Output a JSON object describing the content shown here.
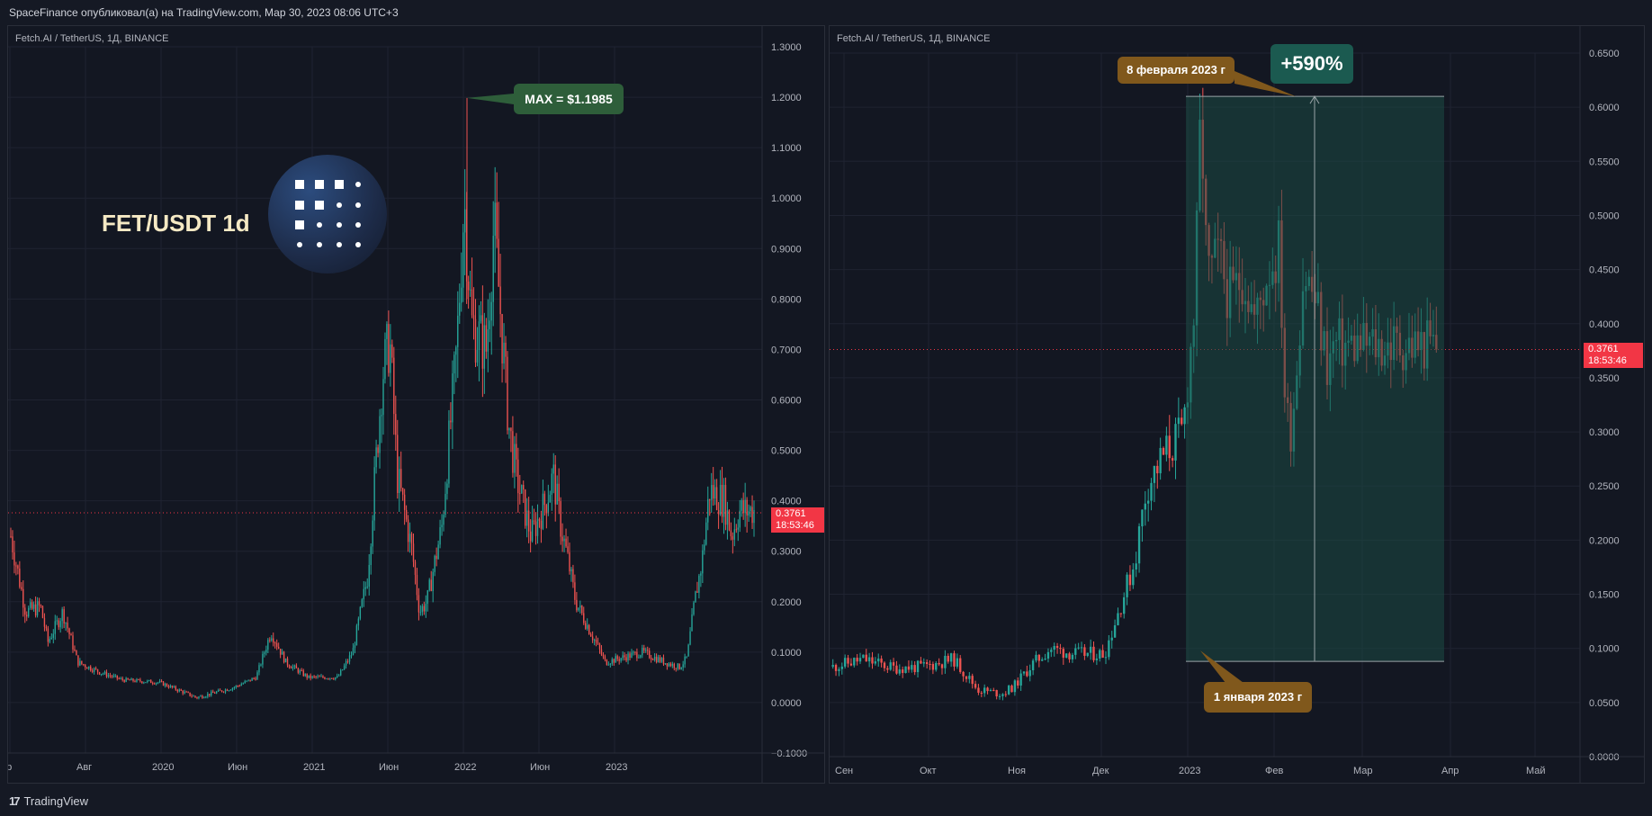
{
  "header": {
    "attribution": "SpaceFinance опубликовал(а) на TradingView.com, Мар 30, 2023 08:06 UTC+3"
  },
  "footer": {
    "brand_icon": "17",
    "brand": "TradingView"
  },
  "left_chart": {
    "legend": "Fetch.AI / TetherUS, 1Д, BINANCE",
    "title": "FET/USDT 1d",
    "logo": "fetch-ai-logo",
    "annotation": "MAX = $1.1985",
    "price_label": "0.3761",
    "countdown": "18:53:46",
    "y_ticks": [
      "1.3000",
      "1.2000",
      "1.1000",
      "1.0000",
      "0.9000",
      "0.8000",
      "0.7000",
      "0.6000",
      "0.5000",
      "0.4000",
      "0.3000",
      "0.2000",
      "0.1000",
      "0.0000",
      "−0.1000"
    ],
    "x_ticks": [
      "ар",
      "Авг",
      "2020",
      "Июн",
      "2021",
      "Июн",
      "2022",
      "Июн",
      "2023"
    ]
  },
  "right_chart": {
    "legend": "Fetch.AI / TetherUS, 1Д, BINANCE",
    "callout_top_date": "8 февраля 2023 г",
    "callout_gain": "+590%",
    "callout_bottom_date": "1 января 2023 г",
    "price_label": "0.3761",
    "countdown": "18:53:46",
    "y_ticks": [
      "0.6500",
      "0.6000",
      "0.5500",
      "0.5000",
      "0.4500",
      "0.4000",
      "0.3500",
      "0.3000",
      "0.2500",
      "0.2000",
      "0.1500",
      "0.1000",
      "0.0500",
      "0.0000"
    ],
    "x_ticks": [
      "Сен",
      "Окт",
      "Ноя",
      "Дек",
      "2023",
      "Фев",
      "Мар",
      "Апр",
      "Май"
    ]
  },
  "colors": {
    "up": "#26a69a",
    "down": "#ef5350",
    "background": "#131722",
    "grid": "#1f2331",
    "price_line": "#f23645",
    "max_callout": "#2e5e3a",
    "date_callout": "#80581c",
    "gain_callout": "#1b5a50",
    "range_fill": "#1c4a44"
  },
  "chart_data": [
    {
      "type": "candlestick",
      "title": "FET/USDT 1d",
      "ylim": [
        -0.1,
        1.3
      ],
      "x_ticks": [
        "ар",
        "Авг",
        "2020",
        "Июн",
        "2021",
        "Июн",
        "2022",
        "Июн",
        "2023"
      ],
      "series_approx_close": [
        [
          0.0,
          0.33
        ],
        [
          0.02,
          0.18
        ],
        [
          0.04,
          0.19
        ],
        [
          0.05,
          0.12
        ],
        [
          0.07,
          0.18
        ],
        [
          0.09,
          0.08
        ],
        [
          0.12,
          0.06
        ],
        [
          0.15,
          0.045
        ],
        [
          0.2,
          0.04
        ],
        [
          0.25,
          0.01
        ],
        [
          0.3,
          0.03
        ],
        [
          0.33,
          0.05
        ],
        [
          0.35,
          0.14
        ],
        [
          0.37,
          0.08
        ],
        [
          0.4,
          0.05
        ],
        [
          0.44,
          0.05
        ],
        [
          0.46,
          0.1
        ],
        [
          0.48,
          0.25
        ],
        [
          0.5,
          0.65
        ],
        [
          0.51,
          0.72
        ],
        [
          0.52,
          0.45
        ],
        [
          0.54,
          0.3
        ],
        [
          0.55,
          0.18
        ],
        [
          0.56,
          0.2
        ],
        [
          0.58,
          0.35
        ],
        [
          0.6,
          0.7
        ],
        [
          0.61,
          1.0
        ],
        [
          0.62,
          0.75
        ],
        [
          0.64,
          0.7
        ],
        [
          0.65,
          0.95
        ],
        [
          0.66,
          0.75
        ],
        [
          0.67,
          0.55
        ],
        [
          0.68,
          0.45
        ],
        [
          0.7,
          0.33
        ],
        [
          0.72,
          0.4
        ],
        [
          0.73,
          0.45
        ],
        [
          0.74,
          0.35
        ],
        [
          0.75,
          0.28
        ],
        [
          0.76,
          0.2
        ],
        [
          0.78,
          0.14
        ],
        [
          0.8,
          0.08
        ],
        [
          0.85,
          0.1
        ],
        [
          0.88,
          0.08
        ],
        [
          0.9,
          0.07
        ],
        [
          0.91,
          0.09
        ],
        [
          0.92,
          0.2
        ],
        [
          0.93,
          0.28
        ],
        [
          0.94,
          0.42
        ],
        [
          0.96,
          0.4
        ],
        [
          0.97,
          0.33
        ],
        [
          0.98,
          0.38
        ]
      ],
      "max": 1.1985,
      "last": 0.3761
    },
    {
      "type": "candlestick",
      "ylim": [
        0,
        0.65
      ],
      "x_ticks": [
        "Сен",
        "Окт",
        "Ноя",
        "Дек",
        "2023",
        "Фев",
        "Мар",
        "Апр",
        "Май"
      ],
      "range_measure": {
        "from": "1 января 2023 г",
        "to": "8 февраля 2023 г",
        "low": 0.088,
        "high": 0.61,
        "change": "+590%"
      },
      "series_approx_close": [
        [
          0.0,
          0.083
        ],
        [
          0.05,
          0.09
        ],
        [
          0.1,
          0.082
        ],
        [
          0.15,
          0.083
        ],
        [
          0.2,
          0.09
        ],
        [
          0.24,
          0.062
        ],
        [
          0.28,
          0.058
        ],
        [
          0.3,
          0.065
        ],
        [
          0.33,
          0.085
        ],
        [
          0.36,
          0.1
        ],
        [
          0.4,
          0.095
        ],
        [
          0.45,
          0.095
        ],
        [
          0.5,
          0.18
        ],
        [
          0.52,
          0.25
        ],
        [
          0.54,
          0.27
        ],
        [
          0.55,
          0.28
        ],
        [
          0.58,
          0.3
        ],
        [
          0.6,
          0.42
        ],
        [
          0.61,
          0.6
        ],
        [
          0.62,
          0.44
        ],
        [
          0.64,
          0.46
        ],
        [
          0.66,
          0.42
        ],
        [
          0.68,
          0.45
        ],
        [
          0.7,
          0.4
        ],
        [
          0.72,
          0.45
        ],
        [
          0.74,
          0.47
        ],
        [
          0.75,
          0.32
        ],
        [
          0.76,
          0.3
        ],
        [
          0.78,
          0.45
        ],
        [
          0.8,
          0.42
        ],
        [
          0.82,
          0.36
        ],
        [
          0.83,
          0.38
        ]
      ],
      "last": 0.3761
    }
  ]
}
